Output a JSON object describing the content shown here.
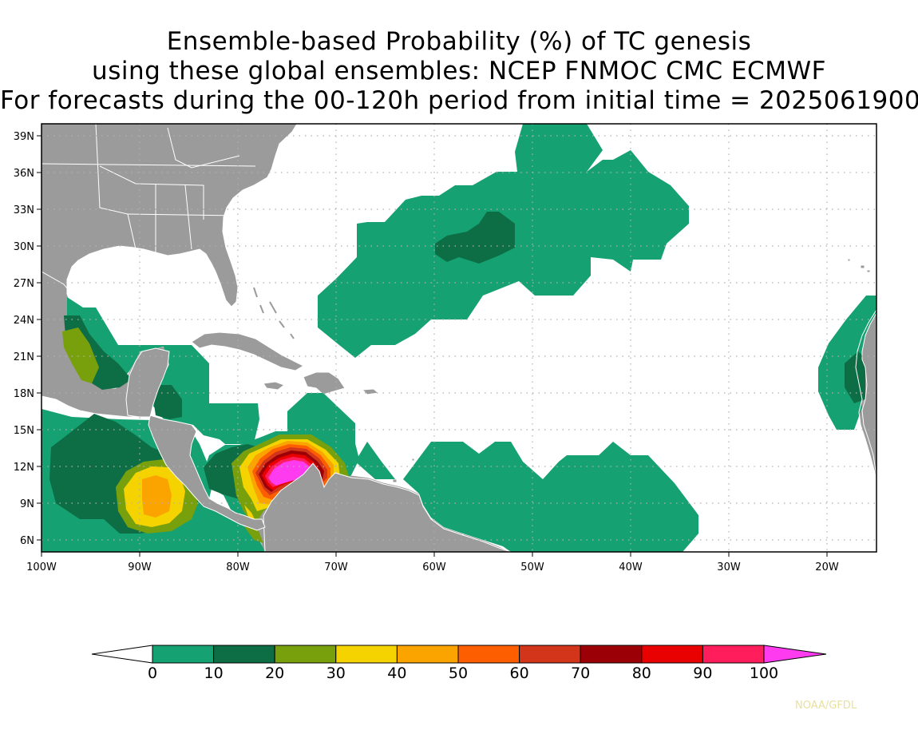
{
  "title": {
    "line1": "Ensemble-based Probability (%) of TC genesis",
    "line2": "using these global ensembles:   NCEP FNMOC CMC ECMWF",
    "line3": "For forecasts during the 00-120h period from initial time = 2025061900"
  },
  "map": {
    "lon_range": [
      -100,
      -15
    ],
    "lat_range": [
      5,
      40
    ],
    "lat_ticks": [
      "39N",
      "36N",
      "33N",
      "30N",
      "27N",
      "24N",
      "21N",
      "18N",
      "15N",
      "12N",
      "9N",
      "6N"
    ],
    "lon_ticks": [
      "100W",
      "90W",
      "80W",
      "70W",
      "60W",
      "50W",
      "40W",
      "30W",
      "20W"
    ],
    "gridlines": "dotted",
    "land_color": "#9b9b9b",
    "border_color": "#ffffff"
  },
  "colorbar": {
    "labels": [
      "0",
      "10",
      "20",
      "30",
      "40",
      "50",
      "60",
      "70",
      "80",
      "90",
      "100"
    ],
    "colors": [
      "#16a172",
      "#0d6e45",
      "#77a00c",
      "#f5d300",
      "#fba400",
      "#fd5f00",
      "#d2351a",
      "#9a0006",
      "#e90000",
      "#ff1e5b"
    ],
    "low_extend_color": "#ffffff",
    "high_extend_color": "#ff3bf0"
  },
  "credit": "NOAA/GFDL"
}
